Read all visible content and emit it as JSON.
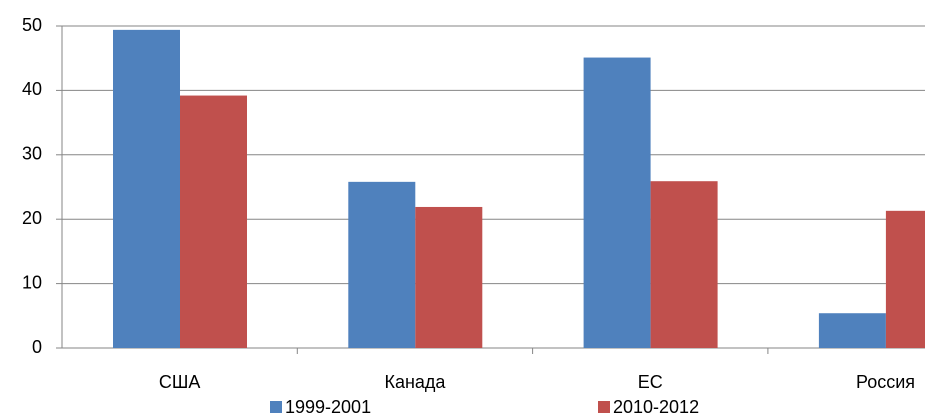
{
  "chart_data": {
    "type": "bar",
    "categories": [
      "США",
      "Канада",
      "ЕС",
      "Россия"
    ],
    "series": [
      {
        "name": "1999-2001",
        "color": "#4f81bd",
        "values": [
          49.4,
          25.8,
          45.1,
          5.4
        ]
      },
      {
        "name": "2010-2012",
        "color": "#c0504d",
        "values": [
          39.2,
          21.9,
          25.9,
          21.3
        ]
      }
    ],
    "ylim": [
      0,
      50
    ],
    "yticks": [
      0,
      10,
      20,
      30,
      40,
      50
    ],
    "grid": true,
    "legend": "bottom"
  }
}
